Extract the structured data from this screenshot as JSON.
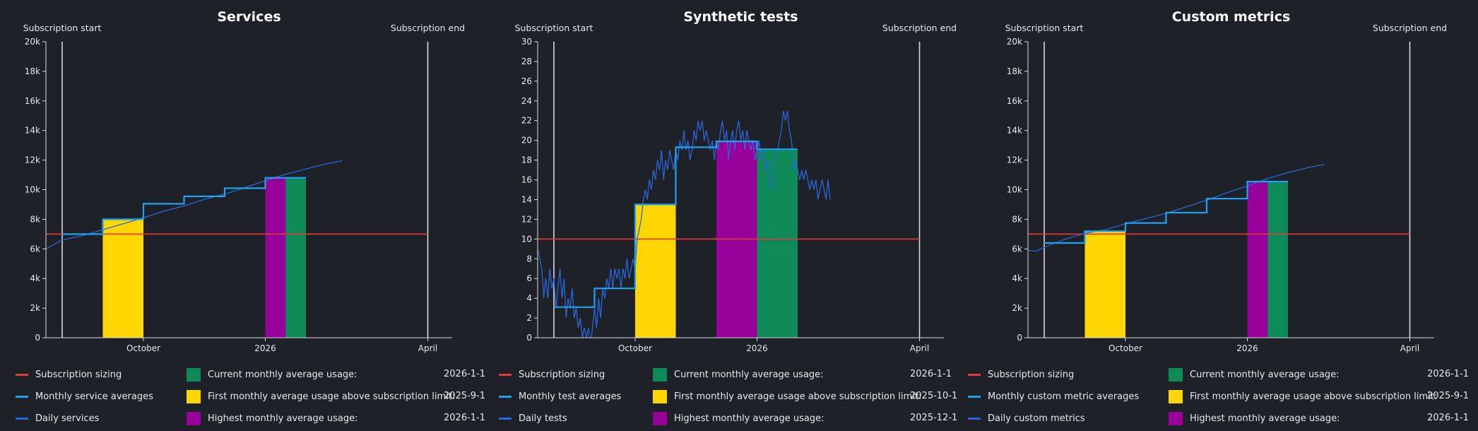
{
  "colors": {
    "background": "#1e2128",
    "subscription_sizing": "#e03a3a",
    "monthly_average": "#1ea2f0",
    "daily": "#2a66d8",
    "current_month": "#0e8a58",
    "first_above": "#ffd600",
    "highest": "#970099",
    "axis": "#d9d9d9"
  },
  "chart_data": [
    {
      "type": "line",
      "title": "Services",
      "subscription_start_label": "Subscription start",
      "subscription_end_label": "Subscription end",
      "x_range": [
        -0.4,
        9.6
      ],
      "subscription_start": 0,
      "subscription_end": 9,
      "x_ticks": [
        {
          "x": 2,
          "label": "October"
        },
        {
          "x": 5,
          "label": "2026"
        },
        {
          "x": 9,
          "label": "April"
        }
      ],
      "ylim": [
        0,
        20000
      ],
      "y_ticks": [
        0,
        2000,
        4000,
        6000,
        8000,
        10000,
        12000,
        14000,
        16000,
        18000,
        20000
      ],
      "y_tick_labels": [
        "0",
        "2k",
        "4k",
        "6k",
        "8k",
        "10k",
        "12k",
        "14k",
        "16k",
        "18k",
        "20k"
      ],
      "subscription_sizing": 7000,
      "monthly_steps": [
        [
          0,
          7000
        ],
        [
          1,
          7000
        ],
        [
          1,
          8000
        ],
        [
          2,
          8000
        ],
        [
          2,
          9050
        ],
        [
          3,
          9050
        ],
        [
          3,
          9550
        ],
        [
          4,
          9550
        ],
        [
          4,
          10100
        ],
        [
          5,
          10100
        ],
        [
          5,
          10800
        ],
        [
          6,
          10800
        ]
      ],
      "daily": [
        [
          -0.4,
          6000
        ],
        [
          0.0,
          6600
        ],
        [
          0.5,
          6900
        ],
        [
          1.0,
          7300
        ],
        [
          1.5,
          7700
        ],
        [
          2.0,
          8100
        ],
        [
          2.5,
          8550
        ],
        [
          3.0,
          8900
        ],
        [
          3.5,
          9350
        ],
        [
          4.0,
          9700
        ],
        [
          4.5,
          10150
        ],
        [
          5.0,
          10600
        ],
        [
          5.5,
          11050
        ],
        [
          6.0,
          11400
        ],
        [
          6.5,
          11750
        ],
        [
          6.9,
          11950
        ]
      ],
      "bars": [
        {
          "kind": "first_above",
          "x0": 1,
          "x1": 2,
          "value": 8000
        },
        {
          "kind": "highest",
          "x0": 5,
          "x1": 5.5,
          "value": 10800
        },
        {
          "kind": "current",
          "x0": 5.5,
          "x1": 6,
          "value": 10800
        }
      ],
      "legend": {
        "subscription_sizing": "Subscription sizing",
        "monthly": "Monthly service averages",
        "daily": "Daily services",
        "current_label": "Current monthly average usage:",
        "current_date": "2026-1-1",
        "first_label": "First monthly average usage above subscription limit:",
        "first_date": "2025-9-1",
        "highest_label": "Highest monthly average usage:",
        "highest_date": "2026-1-1"
      }
    },
    {
      "type": "line",
      "title": "Synthetic tests",
      "subscription_start_label": "Subscription start",
      "subscription_end_label": "Subscription end",
      "x_range": [
        -0.4,
        9.6
      ],
      "subscription_start": 0,
      "subscription_end": 9,
      "x_ticks": [
        {
          "x": 2,
          "label": "October"
        },
        {
          "x": 5,
          "label": "2026"
        },
        {
          "x": 9,
          "label": "April"
        }
      ],
      "ylim": [
        0,
        30
      ],
      "y_ticks": [
        0,
        2,
        4,
        6,
        8,
        10,
        12,
        14,
        16,
        18,
        20,
        22,
        24,
        26,
        28,
        30
      ],
      "y_tick_labels": [
        "0",
        "2",
        "4",
        "6",
        "8",
        "10",
        "12",
        "14",
        "16",
        "18",
        "20",
        "22",
        "24",
        "26",
        "28",
        "30"
      ],
      "subscription_sizing": 10,
      "monthly_steps": [
        [
          0,
          3.1
        ],
        [
          1,
          3.1
        ],
        [
          1,
          5
        ],
        [
          2,
          5
        ],
        [
          2,
          13.5
        ],
        [
          3,
          13.5
        ],
        [
          3,
          19.3
        ],
        [
          4,
          19.3
        ],
        [
          4,
          19.9
        ],
        [
          5,
          19.9
        ],
        [
          5,
          19.1
        ],
        [
          6,
          19.1
        ]
      ],
      "daily": [
        [
          -0.4,
          9
        ],
        [
          -0.3,
          7
        ],
        [
          -0.25,
          4
        ],
        [
          -0.2,
          6
        ],
        [
          -0.15,
          4
        ],
        [
          -0.1,
          7
        ],
        [
          -0.05,
          5
        ],
        [
          0.0,
          6
        ],
        [
          0.05,
          3
        ],
        [
          0.1,
          5
        ],
        [
          0.15,
          7
        ],
        [
          0.2,
          4
        ],
        [
          0.25,
          6
        ],
        [
          0.3,
          2
        ],
        [
          0.35,
          4
        ],
        [
          0.4,
          3
        ],
        [
          0.45,
          5
        ],
        [
          0.5,
          2
        ],
        [
          0.55,
          3
        ],
        [
          0.6,
          1
        ],
        [
          0.65,
          2
        ],
        [
          0.7,
          0
        ],
        [
          0.75,
          1
        ],
        [
          0.8,
          0
        ],
        [
          0.85,
          1
        ],
        [
          0.9,
          -1
        ],
        [
          0.95,
          1
        ],
        [
          1.0,
          3
        ],
        [
          1.05,
          1
        ],
        [
          1.1,
          4
        ],
        [
          1.15,
          2
        ],
        [
          1.2,
          5
        ],
        [
          1.25,
          4
        ],
        [
          1.3,
          6
        ],
        [
          1.35,
          5
        ],
        [
          1.4,
          7
        ],
        [
          1.45,
          5
        ],
        [
          1.5,
          7
        ],
        [
          1.55,
          6
        ],
        [
          1.6,
          7
        ],
        [
          1.65,
          5
        ],
        [
          1.7,
          7
        ],
        [
          1.75,
          6
        ],
        [
          1.8,
          8
        ],
        [
          1.85,
          6
        ],
        [
          1.9,
          7
        ],
        [
          1.95,
          8
        ],
        [
          2.0,
          7
        ],
        [
          2.05,
          10
        ],
        [
          2.1,
          11
        ],
        [
          2.15,
          12
        ],
        [
          2.2,
          14
        ],
        [
          2.25,
          15
        ],
        [
          2.3,
          14
        ],
        [
          2.35,
          16
        ],
        [
          2.4,
          15
        ],
        [
          2.45,
          17
        ],
        [
          2.5,
          16
        ],
        [
          2.55,
          18
        ],
        [
          2.6,
          17
        ],
        [
          2.65,
          19
        ],
        [
          2.7,
          16
        ],
        [
          2.75,
          18
        ],
        [
          2.8,
          17
        ],
        [
          2.85,
          19
        ],
        [
          2.9,
          18
        ],
        [
          2.95,
          17
        ],
        [
          3.0,
          19
        ],
        [
          3.05,
          18
        ],
        [
          3.1,
          20
        ],
        [
          3.15,
          19
        ],
        [
          3.2,
          21
        ],
        [
          3.25,
          19
        ],
        [
          3.3,
          20
        ],
        [
          3.35,
          18
        ],
        [
          3.4,
          19
        ],
        [
          3.45,
          21
        ],
        [
          3.5,
          20
        ],
        [
          3.55,
          22
        ],
        [
          3.6,
          21
        ],
        [
          3.65,
          22
        ],
        [
          3.7,
          20
        ],
        [
          3.75,
          21
        ],
        [
          3.8,
          20
        ],
        [
          3.85,
          19
        ],
        [
          3.9,
          20
        ],
        [
          3.95,
          18
        ],
        [
          4.0,
          20
        ],
        [
          4.05,
          19
        ],
        [
          4.1,
          21
        ],
        [
          4.15,
          22
        ],
        [
          4.2,
          20
        ],
        [
          4.25,
          21
        ],
        [
          4.3,
          18
        ],
        [
          4.35,
          20
        ],
        [
          4.4,
          21
        ],
        [
          4.45,
          19
        ],
        [
          4.5,
          21
        ],
        [
          4.55,
          22
        ],
        [
          4.6,
          20
        ],
        [
          4.65,
          21
        ],
        [
          4.7,
          19
        ],
        [
          4.75,
          21
        ],
        [
          4.8,
          20
        ],
        [
          4.85,
          19
        ],
        [
          4.9,
          20
        ],
        [
          4.95,
          18
        ],
        [
          5.0,
          19
        ],
        [
          5.05,
          20
        ],
        [
          5.1,
          18
        ],
        [
          5.15,
          19
        ],
        [
          5.2,
          17
        ],
        [
          5.25,
          18
        ],
        [
          5.3,
          16
        ],
        [
          5.35,
          15
        ],
        [
          5.4,
          16
        ],
        [
          5.45,
          18
        ],
        [
          5.5,
          19
        ],
        [
          5.55,
          20
        ],
        [
          5.6,
          21
        ],
        [
          5.65,
          23
        ],
        [
          5.7,
          22
        ],
        [
          5.75,
          23
        ],
        [
          5.8,
          21
        ],
        [
          5.85,
          20
        ],
        [
          5.9,
          17
        ],
        [
          5.95,
          18
        ],
        [
          6.0,
          17
        ],
        [
          6.05,
          16
        ],
        [
          6.1,
          17
        ],
        [
          6.15,
          16
        ],
        [
          6.2,
          17
        ],
        [
          6.25,
          16
        ],
        [
          6.3,
          15
        ],
        [
          6.35,
          16
        ],
        [
          6.4,
          15
        ],
        [
          6.45,
          16
        ],
        [
          6.5,
          14
        ],
        [
          6.55,
          15
        ],
        [
          6.6,
          16
        ],
        [
          6.65,
          15
        ],
        [
          6.7,
          14
        ],
        [
          6.75,
          16
        ],
        [
          6.8,
          14
        ]
      ],
      "bars": [
        {
          "kind": "first_above",
          "x0": 2,
          "x1": 3,
          "value": 13.5
        },
        {
          "kind": "highest",
          "x0": 4,
          "x1": 5,
          "value": 19.9
        },
        {
          "kind": "current",
          "x0": 5,
          "x1": 6,
          "value": 19.1
        }
      ],
      "legend": {
        "subscription_sizing": "Subscription sizing",
        "monthly": "Monthly test averages",
        "daily": "Daily tests",
        "current_label": "Current monthly average usage:",
        "current_date": "2026-1-1",
        "first_label": "First monthly average usage above subscription limit:",
        "first_date": "2025-10-1",
        "highest_label": "Highest monthly average usage:",
        "highest_date": "2025-12-1"
      }
    },
    {
      "type": "line",
      "title": "Custom metrics",
      "subscription_start_label": "Subscription start",
      "subscription_end_label": "Subscription end",
      "x_range": [
        -0.4,
        9.6
      ],
      "subscription_start": 0,
      "subscription_end": 9,
      "x_ticks": [
        {
          "x": 2,
          "label": "October"
        },
        {
          "x": 5,
          "label": "2026"
        },
        {
          "x": 9,
          "label": "April"
        }
      ],
      "ylim": [
        0,
        20000
      ],
      "y_ticks": [
        0,
        2000,
        4000,
        6000,
        8000,
        10000,
        12000,
        14000,
        16000,
        18000,
        20000
      ],
      "y_tick_labels": [
        "0",
        "2k",
        "4k",
        "6k",
        "8k",
        "10k",
        "12k",
        "14k",
        "16k",
        "18k",
        "20k"
      ],
      "subscription_sizing": 7000,
      "monthly_steps": [
        [
          0,
          6400
        ],
        [
          1,
          6400
        ],
        [
          1,
          7200
        ],
        [
          2,
          7200
        ],
        [
          2,
          7750
        ],
        [
          3,
          7750
        ],
        [
          3,
          8450
        ],
        [
          4,
          8450
        ],
        [
          4,
          9400
        ],
        [
          5,
          9400
        ],
        [
          5,
          10550
        ],
        [
          6,
          10550
        ]
      ],
      "daily": [
        [
          -0.4,
          5900
        ],
        [
          -0.2,
          5850
        ],
        [
          0.0,
          6100
        ],
        [
          0.5,
          6650
        ],
        [
          1.0,
          7050
        ],
        [
          1.5,
          7300
        ],
        [
          2.0,
          7700
        ],
        [
          2.5,
          8050
        ],
        [
          3.0,
          8400
        ],
        [
          3.5,
          8850
        ],
        [
          4.0,
          9300
        ],
        [
          4.5,
          9800
        ],
        [
          5.0,
          10250
        ],
        [
          5.5,
          10750
        ],
        [
          6.0,
          11150
        ],
        [
          6.5,
          11500
        ],
        [
          6.9,
          11700
        ]
      ],
      "bars": [
        {
          "kind": "first_above",
          "x0": 1,
          "x1": 2,
          "value": 7200
        },
        {
          "kind": "highest",
          "x0": 5,
          "x1": 5.5,
          "value": 10550
        },
        {
          "kind": "current",
          "x0": 5.5,
          "x1": 6,
          "value": 10550
        }
      ],
      "legend": {
        "subscription_sizing": "Subscription sizing",
        "monthly": "Monthly custom metric averages",
        "daily": "Daily custom metrics",
        "current_label": "Current monthly average usage:",
        "current_date": "2026-1-1",
        "first_label": "First monthly average usage above subscription limit:",
        "first_date": "2025-9-1",
        "highest_label": "Highest monthly average usage:",
        "highest_date": "2026-1-1"
      }
    }
  ]
}
